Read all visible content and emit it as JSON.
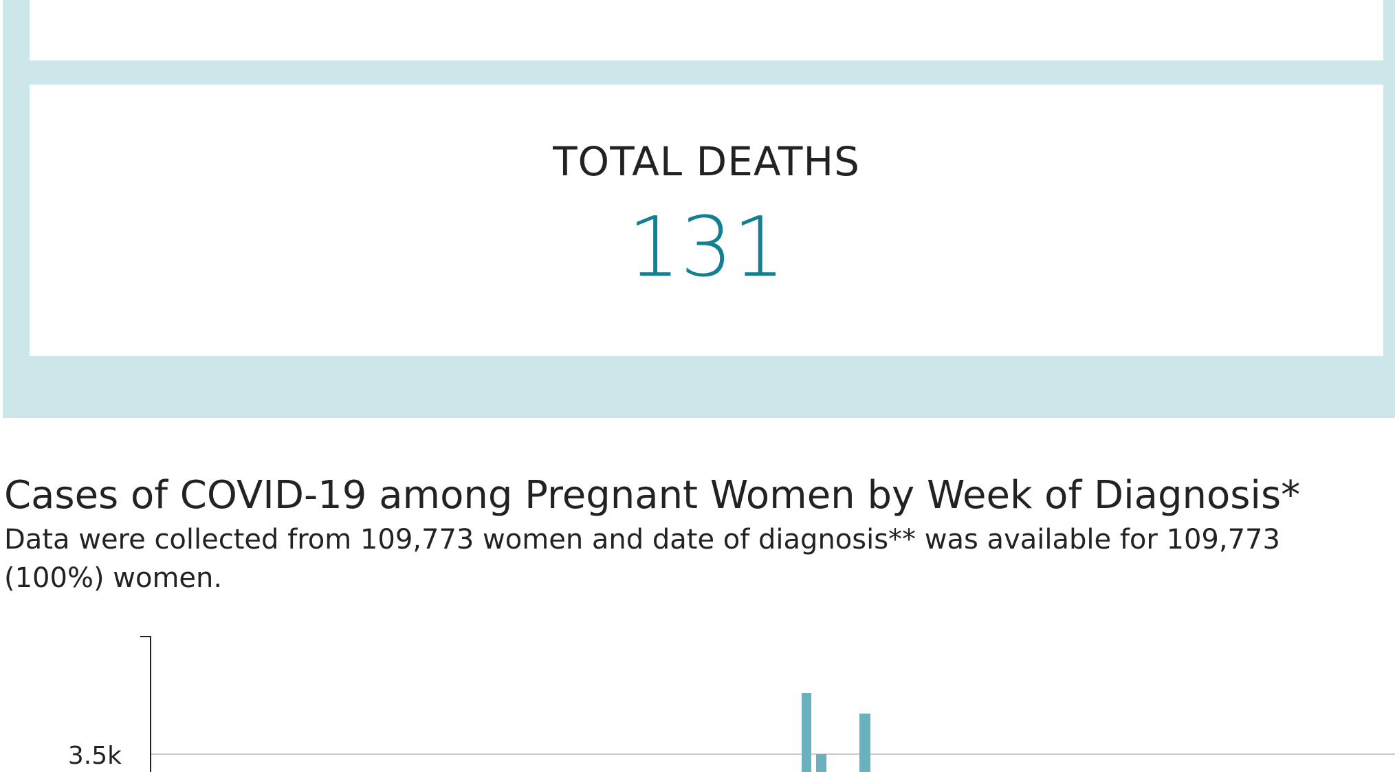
{
  "summary": {
    "label": "TOTAL DEATHS",
    "value": "131"
  },
  "chart": {
    "title": "Cases of COVID-19 among Pregnant Women by Week of Diagnosis*",
    "subtitle_lines": [
      "Data were collected from 109,773 women and date of diagnosis** was available for 109,773",
      "(100%) women."
    ],
    "yticks": [
      {
        "value": 3500,
        "label": "3.5k"
      }
    ]
  }
}
